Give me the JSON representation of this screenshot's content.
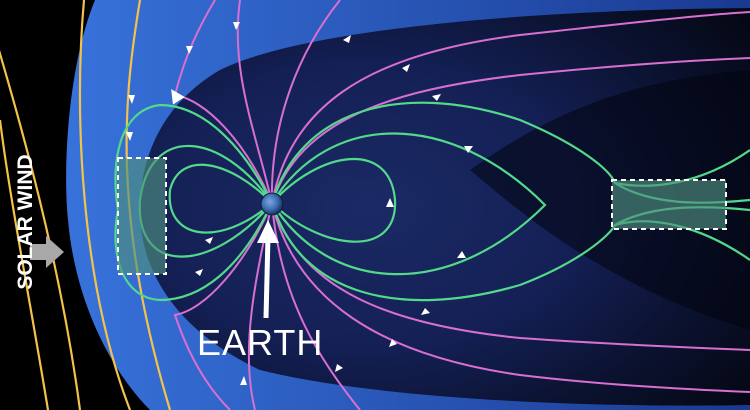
{
  "labels": {
    "earth": "EARTH",
    "solar_wind": "SOLAR WIND"
  },
  "colors": {
    "background": "#000000",
    "magnetosphere_blue": "#2f62c9",
    "solar_wind_lines": "#f3c24a",
    "open_field_lines": "#d86fd1",
    "closed_field_lines": "#53d98a",
    "reconnection_box": "#4f8f7f",
    "arrow": "#a8a8a8",
    "text": "#ffffff"
  }
}
